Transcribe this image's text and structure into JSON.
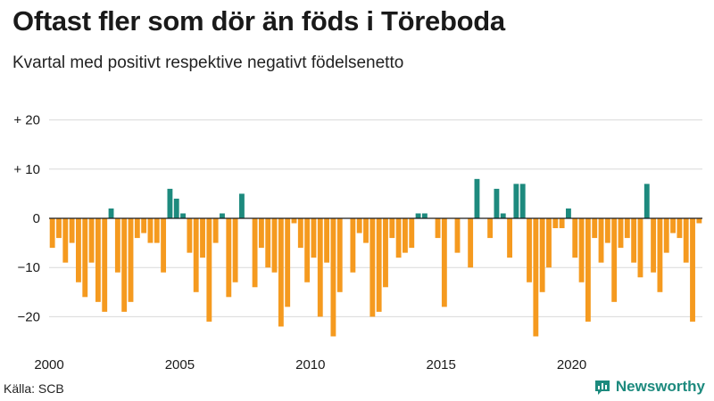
{
  "chart_data": {
    "type": "bar",
    "title": "Oftast fler som dör än föds i Töreboda",
    "subtitle": "Kvartal med positivt respektive negativt födelsenetto",
    "xlabel": "",
    "ylabel": "",
    "start_year": 2000,
    "periods_per_year": 4,
    "ylim": [
      -27,
      24
    ],
    "y_ticks": [
      {
        "value": 20,
        "label": "+ 20"
      },
      {
        "value": 10,
        "label": "+ 10"
      },
      {
        "value": 0,
        "label": "0"
      },
      {
        "value": -10,
        "label": "−10"
      },
      {
        "value": -20,
        "label": "−20"
      }
    ],
    "x_ticks": [
      {
        "value": 2000,
        "label": "2000"
      },
      {
        "value": 2005,
        "label": "2005"
      },
      {
        "value": 2010,
        "label": "2010"
      },
      {
        "value": 2015,
        "label": "2015"
      },
      {
        "value": 2020,
        "label": "2020"
      }
    ],
    "values": [
      -6,
      -4,
      -9,
      -5,
      -13,
      -16,
      -9,
      -17,
      -19,
      2,
      -11,
      -19,
      -17,
      -4,
      -3,
      -5,
      -5,
      -11,
      6,
      4,
      1,
      -7,
      -15,
      -8,
      -21,
      -5,
      1,
      -16,
      -13,
      5,
      0,
      -14,
      -6,
      -10,
      -11,
      -22,
      -18,
      -1,
      -6,
      -13,
      -8,
      -20,
      -9,
      -24,
      -15,
      0,
      -11,
      -3,
      -5,
      -20,
      -19,
      -14,
      -4,
      -8,
      -7,
      -6,
      1,
      1,
      0,
      -4,
      -18,
      0,
      -7,
      0,
      -10,
      8,
      0,
      -4,
      6,
      1,
      -8,
      7,
      7,
      -13,
      -24,
      -15,
      -10,
      -2,
      -2,
      2,
      -8,
      -13,
      -21,
      -4,
      -9,
      -5,
      -17,
      -6,
      -4,
      -9,
      -12,
      7,
      -11,
      -15,
      -7,
      -3,
      -4,
      -9,
      -21,
      -1
    ],
    "colors": {
      "positive": "#1d8a7e",
      "negative": "#f59a1f",
      "grid": "#d9d9d9",
      "zero_line": "#1a1a1a"
    }
  },
  "source": "Källa: SCB",
  "brand": {
    "name": "Newsworthy",
    "icon": "newsworthy-logo-icon"
  }
}
